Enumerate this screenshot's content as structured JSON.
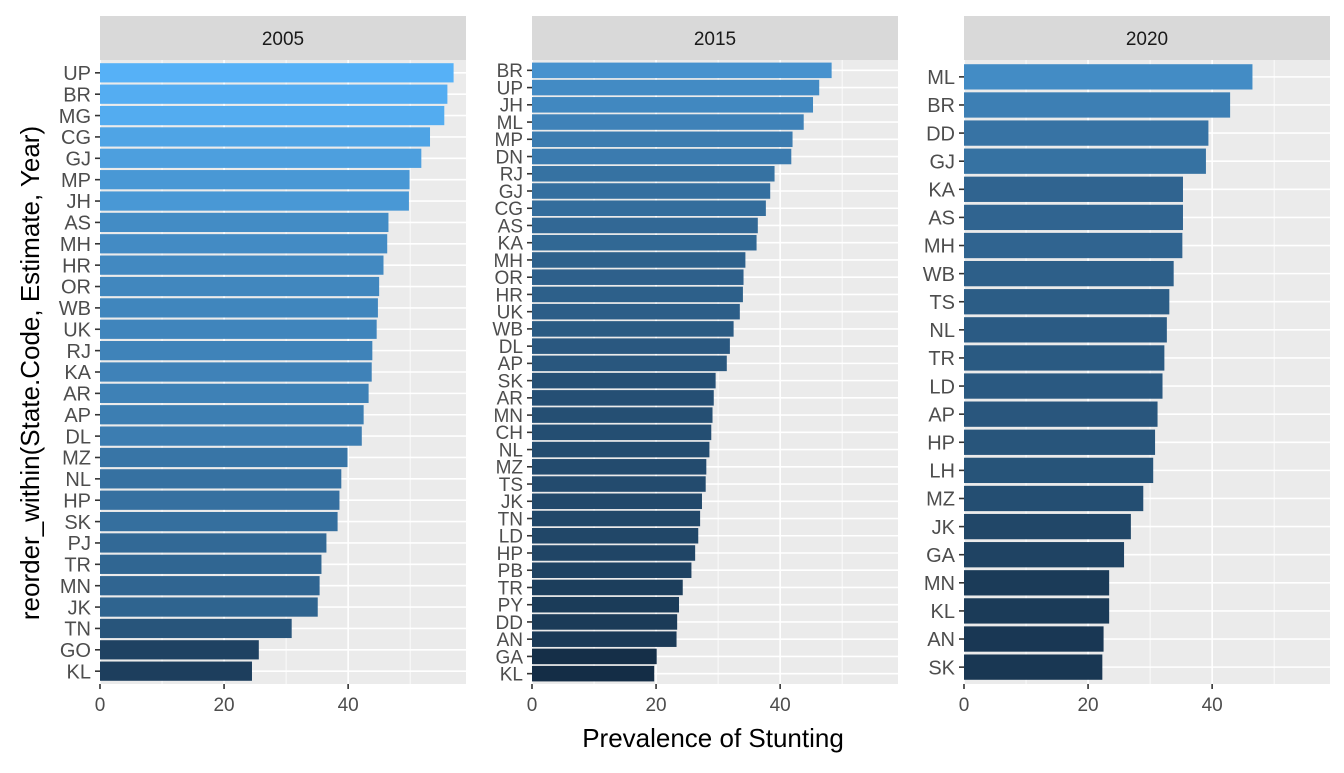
{
  "chart_data": {
    "type": "bar",
    "orientation": "horizontal",
    "xlabel": "Prevalence of Stunting",
    "ylabel": "reorder_within(State.Code, Estimate, Year)",
    "xlim": [
      0,
      59
    ],
    "xticks": [
      0,
      20,
      40
    ],
    "grid": true,
    "fill_scale": {
      "low": "#132B43",
      "high": "#56B1F7",
      "range": [
        19,
        57
      ]
    },
    "panels": [
      {
        "title": "2005",
        "categories": [
          "UP",
          "BR",
          "MG",
          "CG",
          "GJ",
          "MP",
          "JH",
          "AS",
          "MH",
          "HR",
          "OR",
          "WB",
          "UK",
          "RJ",
          "KA",
          "AR",
          "AP",
          "DL",
          "MZ",
          "NL",
          "HP",
          "SK",
          "PJ",
          "TR",
          "MN",
          "JK",
          "TN",
          "GO",
          "KL"
        ],
        "values": [
          57.0,
          56.0,
          55.5,
          53.2,
          51.8,
          49.9,
          49.8,
          46.5,
          46.3,
          45.7,
          45.0,
          44.8,
          44.6,
          43.9,
          43.8,
          43.3,
          42.5,
          42.2,
          39.9,
          38.9,
          38.6,
          38.3,
          36.5,
          35.7,
          35.4,
          35.1,
          30.9,
          25.6,
          24.5
        ]
      },
      {
        "title": "2015",
        "categories": [
          "BR",
          "UP",
          "JH",
          "ML",
          "MP",
          "DN",
          "RJ",
          "GJ",
          "CG",
          "AS",
          "KA",
          "MH",
          "OR",
          "HR",
          "UK",
          "WB",
          "DL",
          "AP",
          "SK",
          "AR",
          "MN",
          "CH",
          "NL",
          "MZ",
          "TS",
          "JK",
          "TN",
          "LD",
          "HP",
          "PB",
          "TR",
          "PY",
          "DD",
          "AN",
          "GA",
          "KL"
        ],
        "values": [
          48.3,
          46.3,
          45.3,
          43.8,
          42.0,
          41.8,
          39.1,
          38.4,
          37.7,
          36.4,
          36.2,
          34.4,
          34.1,
          34.0,
          33.5,
          32.5,
          31.9,
          31.4,
          29.6,
          29.3,
          29.1,
          28.9,
          28.6,
          28.1,
          28.0,
          27.4,
          27.1,
          26.8,
          26.3,
          25.7,
          24.3,
          23.7,
          23.4,
          23.3,
          20.1,
          19.7
        ]
      },
      {
        "title": "2020",
        "categories": [
          "ML",
          "BR",
          "DD",
          "GJ",
          "KA",
          "AS",
          "MH",
          "WB",
          "TS",
          "NL",
          "TR",
          "LD",
          "AP",
          "HP",
          "LH",
          "MZ",
          "JK",
          "GA",
          "MN",
          "KL",
          "AN",
          "SK"
        ],
        "values": [
          46.5,
          42.9,
          39.4,
          39.0,
          35.3,
          35.3,
          35.2,
          33.8,
          33.1,
          32.7,
          32.3,
          32.0,
          31.2,
          30.8,
          30.5,
          28.9,
          26.9,
          25.8,
          23.4,
          23.4,
          22.5,
          22.3
        ]
      }
    ]
  }
}
